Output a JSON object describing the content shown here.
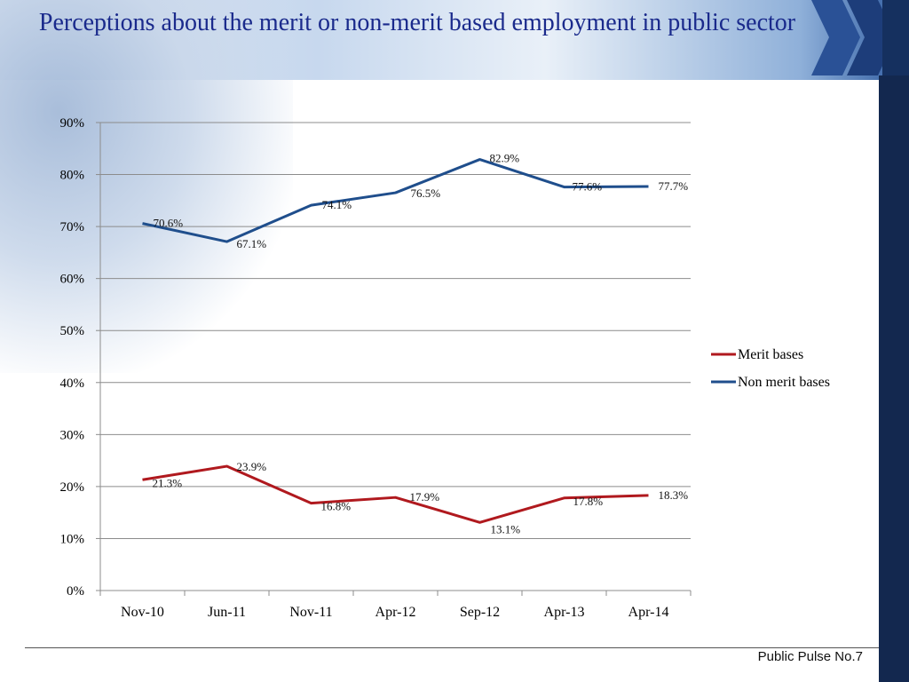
{
  "slide": {
    "title": "Perceptions about the merit or non-merit based employment in public sector",
    "footer": "Public Pulse No.7"
  },
  "colors": {
    "title": "#1a2a8c",
    "merit": "#b0191e",
    "non_merit": "#1f4e8c",
    "accent_dark": "#13284f"
  },
  "chart_data": {
    "type": "line",
    "categories": [
      "Nov-10",
      "Jun-11",
      "Nov-11",
      "Apr-12",
      "Sep-12",
      "Apr-13",
      "Apr-14"
    ],
    "series": [
      {
        "name": "Merit bases",
        "values": [
          21.3,
          23.9,
          16.8,
          17.9,
          13.1,
          17.8,
          18.3
        ],
        "labels": [
          "21.3%",
          "23.9%",
          "16.8%",
          "17.9%",
          "13.1%",
          "17.8%",
          "18.3%"
        ]
      },
      {
        "name": "Non merit bases",
        "values": [
          70.6,
          67.1,
          74.1,
          76.5,
          82.9,
          77.6,
          77.7
        ],
        "labels": [
          "70.6%",
          "67.1%",
          "74.1%",
          "76.5%",
          "82.9%",
          "77.6%",
          "77.7%"
        ]
      }
    ],
    "yticks": [
      "0%",
      "10%",
      "20%",
      "30%",
      "40%",
      "50%",
      "60%",
      "70%",
      "80%",
      "90%"
    ],
    "ylim": [
      0,
      90
    ],
    "grid": true,
    "legend": "right"
  }
}
